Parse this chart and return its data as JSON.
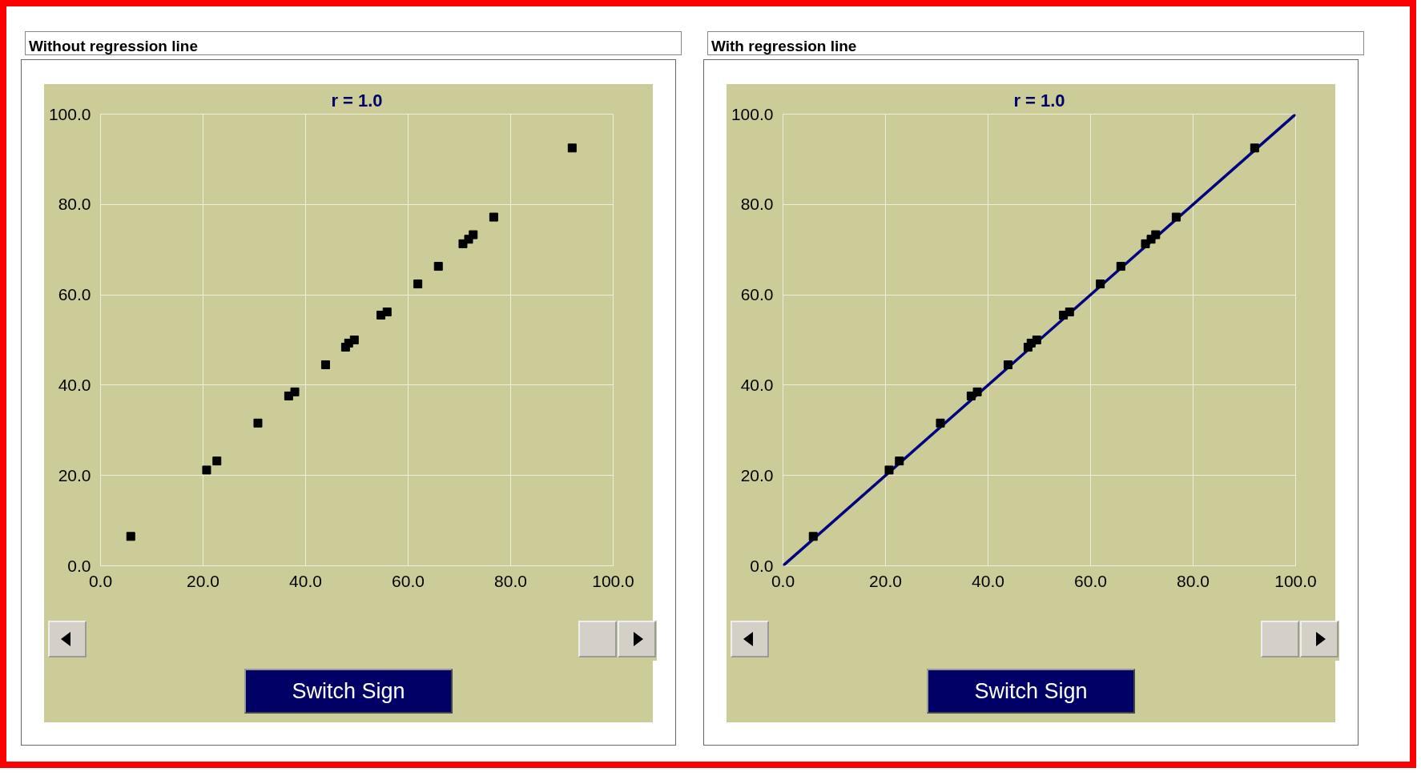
{
  "chart_data": [
    {
      "type": "scatter",
      "title": "Without regression line",
      "subtitle": "r = 1.0",
      "xlim": [
        0,
        100
      ],
      "ylim": [
        0,
        100
      ],
      "xticks": [
        {
          "value": 0,
          "label": "0.0"
        },
        {
          "value": 20,
          "label": "20.0"
        },
        {
          "value": 40,
          "label": "40.0"
        },
        {
          "value": 60,
          "label": "60.0"
        },
        {
          "value": 80,
          "label": "80.0"
        },
        {
          "value": 100,
          "label": "100.0"
        }
      ],
      "yticks": [
        {
          "value": 0,
          "label": "0.0"
        },
        {
          "value": 20,
          "label": "20.0"
        },
        {
          "value": 40,
          "label": "40.0"
        },
        {
          "value": 60,
          "label": "60.0"
        },
        {
          "value": 80,
          "label": "80.0"
        },
        {
          "value": 100,
          "label": "100.0"
        }
      ],
      "grid": true,
      "marker": "square",
      "x": [
        5.9,
        20.7,
        22.7,
        30.7,
        36.7,
        37.9,
        43.9,
        47.8,
        48.4,
        49.5,
        54.7,
        55.9,
        61.9,
        65.9,
        70.7,
        71.8,
        72.7,
        76.7,
        92.0
      ],
      "series": [
        {
          "color": "#000000",
          "values": [
            6.5,
            21.2,
            23.2,
            31.6,
            37.6,
            38.5,
            44.5,
            48.4,
            49.3,
            50.0,
            55.5,
            56.2,
            62.4,
            66.3,
            71.3,
            72.3,
            73.3,
            77.2,
            92.5
          ]
        }
      ],
      "annotations": [
        "Switch Sign"
      ]
    },
    {
      "type": "scatter",
      "title": "With regression line",
      "subtitle": "r = 1.0",
      "xlim": [
        0,
        100
      ],
      "ylim": [
        0,
        100
      ],
      "xticks": [
        {
          "value": 0,
          "label": "0.0"
        },
        {
          "value": 20,
          "label": "20.0"
        },
        {
          "value": 40,
          "label": "40.0"
        },
        {
          "value": 60,
          "label": "60.0"
        },
        {
          "value": 80,
          "label": "80.0"
        },
        {
          "value": 100,
          "label": "100.0"
        }
      ],
      "yticks": [
        {
          "value": 0,
          "label": "0.0"
        },
        {
          "value": 20,
          "label": "20.0"
        },
        {
          "value": 40,
          "label": "40.0"
        },
        {
          "value": 60,
          "label": "60.0"
        },
        {
          "value": 80,
          "label": "80.0"
        },
        {
          "value": 100,
          "label": "100.0"
        }
      ],
      "grid": true,
      "x": [
        5.9,
        20.7,
        22.7,
        30.7,
        36.7,
        37.9,
        43.9,
        47.8,
        48.4,
        49.5,
        54.7,
        55.9,
        61.9,
        65.9,
        70.7,
        71.8,
        72.7,
        76.7,
        92.0
      ],
      "series": [
        {
          "color": "#000000",
          "marker": "square",
          "values": [
            6.5,
            21.2,
            23.2,
            31.6,
            37.6,
            38.5,
            44.5,
            48.4,
            49.3,
            50.0,
            55.5,
            56.2,
            62.4,
            66.3,
            71.3,
            72.3,
            73.3,
            77.2,
            92.5
          ]
        },
        {
          "type": "line",
          "color": "#000080",
          "x": [
            0,
            100
          ],
          "values": [
            0,
            100
          ]
        }
      ],
      "annotations": [
        "Switch Sign"
      ]
    }
  ]
}
